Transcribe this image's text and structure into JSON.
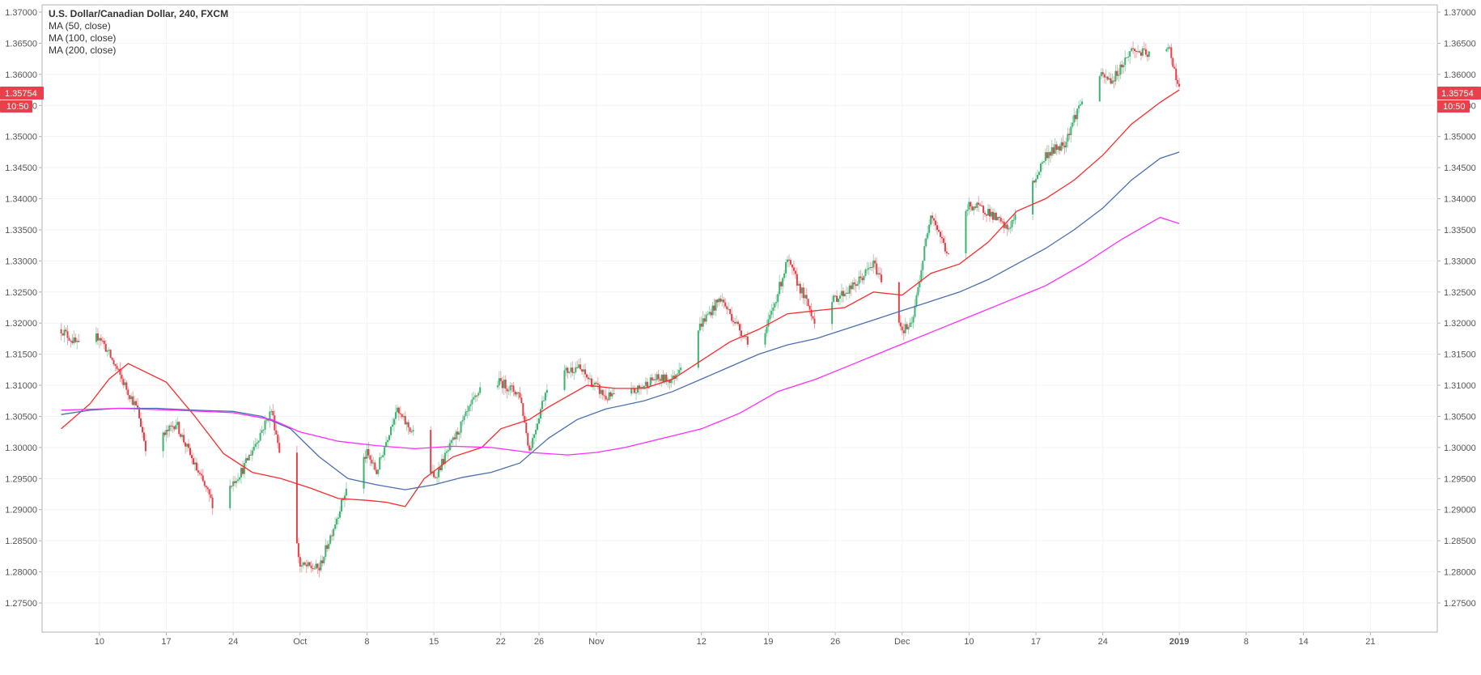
{
  "legend": {
    "title": "U.S. Dollar/Canadian Dollar, 240, FXCM",
    "ma1": "MA (50, close)",
    "ma2": "MA (100, close)",
    "ma3": "MA (200, close)"
  },
  "price_badge": {
    "price": "1.35754",
    "time": "10:50"
  },
  "colors": {
    "up": "#3cb371",
    "down": "#e0404a",
    "ma50": "#ff2a2a",
    "ma100": "#4a6fb0",
    "ma200": "#ff2cff",
    "badge": "#e8404c",
    "axis_text": "#555555",
    "frame": "#b0b0b0"
  },
  "chart_data": {
    "type": "candlestick",
    "ylim": [
      1.275,
      1.37
    ],
    "y_ticks": [
      "1.37000",
      "1.36500",
      "1.36000",
      "1.35500",
      "1.35000",
      "1.34500",
      "1.34000",
      "1.33500",
      "1.33000",
      "1.32500",
      "1.32000",
      "1.31500",
      "1.31000",
      "1.30500",
      "1.30000",
      "1.29500",
      "1.29000",
      "1.28500",
      "1.28000",
      "1.27500"
    ],
    "x_tick_labels": [
      "10",
      "17",
      "24",
      "Oct",
      "8",
      "15",
      "22",
      "26",
      "Nov",
      "12",
      "19",
      "26",
      "Dec",
      "10",
      "17",
      "24",
      "2019",
      "8",
      "14",
      "21"
    ],
    "x_tick_dates": [
      "2018-09-10",
      "2018-09-17",
      "2018-09-24",
      "2018-10-01",
      "2018-10-08",
      "2018-10-15",
      "2018-10-22",
      "2018-10-26",
      "2018-11-01",
      "2018-11-12",
      "2018-11-19",
      "2018-11-26",
      "2018-12-03",
      "2018-12-10",
      "2018-12-17",
      "2018-12-24",
      "2019-01-01",
      "2019-01-08",
      "2019-01-14",
      "2019-01-21"
    ],
    "close_path": [
      [
        "2018-09-06",
        1.319
      ],
      [
        "2018-09-08",
        1.316
      ],
      [
        "2018-09-10",
        1.318
      ],
      [
        "2018-09-12",
        1.312
      ],
      [
        "2018-09-14",
        1.306
      ],
      [
        "2018-09-15",
        1.299
      ],
      [
        "2018-09-18",
        1.304
      ],
      [
        "2018-09-20",
        1.297
      ],
      [
        "2018-09-22",
        1.2905
      ],
      [
        "2018-09-25",
        1.2965
      ],
      [
        "2018-09-28",
        1.306
      ],
      [
        "2018-09-30",
        1.291
      ],
      [
        "2018-10-01",
        1.281
      ],
      [
        "2018-10-03",
        1.2805
      ],
      [
        "2018-10-06",
        1.294
      ],
      [
        "2018-10-08",
        1.299
      ],
      [
        "2018-10-09",
        1.296
      ],
      [
        "2018-10-11",
        1.306
      ],
      [
        "2018-10-13",
        1.302
      ],
      [
        "2018-10-15",
        1.295
      ],
      [
        "2018-10-17",
        1.301
      ],
      [
        "2018-10-20",
        1.31
      ],
      [
        "2018-10-22",
        1.3105
      ],
      [
        "2018-10-24",
        1.3085
      ],
      [
        "2018-10-25",
        1.2995
      ],
      [
        "2018-10-27",
        1.311
      ],
      [
        "2018-10-30",
        1.313
      ],
      [
        "2018-11-02",
        1.308
      ],
      [
        "2018-11-05",
        1.309
      ],
      [
        "2018-11-07",
        1.311
      ],
      [
        "2018-11-09",
        1.311
      ],
      [
        "2018-11-12",
        1.32
      ],
      [
        "2018-11-14",
        1.324
      ],
      [
        "2018-11-16",
        1.319
      ],
      [
        "2018-11-18",
        1.315
      ],
      [
        "2018-11-21",
        1.33
      ],
      [
        "2018-11-24",
        1.32
      ],
      [
        "2018-11-26",
        1.324
      ],
      [
        "2018-11-28",
        1.326
      ],
      [
        "2018-11-30",
        1.3295
      ],
      [
        "2018-12-02",
        1.3235
      ],
      [
        "2018-12-03",
        1.319
      ],
      [
        "2018-12-04",
        1.3195
      ],
      [
        "2018-12-06",
        1.338
      ],
      [
        "2018-12-08",
        1.33
      ],
      [
        "2018-12-10",
        1.339
      ],
      [
        "2018-12-12",
        1.338
      ],
      [
        "2018-12-14",
        1.335
      ],
      [
        "2018-12-16",
        1.34
      ],
      [
        "2018-12-18",
        1.347
      ],
      [
        "2018-12-20",
        1.349
      ],
      [
        "2018-12-21",
        1.353
      ],
      [
        "2018-12-23",
        1.36
      ],
      [
        "2018-12-25",
        1.359
      ],
      [
        "2018-12-27",
        1.364
      ],
      [
        "2018-12-29",
        1.363
      ],
      [
        "2018-12-31",
        1.364
      ],
      [
        "2019-01-01",
        1.3575
      ]
    ],
    "series": [
      {
        "name": "MA (50, close)",
        "points": [
          [
            "2018-09-06",
            1.303
          ],
          [
            "2018-09-09",
            1.307
          ],
          [
            "2018-09-11",
            1.311
          ],
          [
            "2018-09-13",
            1.3135
          ],
          [
            "2018-09-17",
            1.3105
          ],
          [
            "2018-09-20",
            1.305
          ],
          [
            "2018-09-23",
            1.299
          ],
          [
            "2018-09-26",
            1.296
          ],
          [
            "2018-09-29",
            1.295
          ],
          [
            "2018-10-02",
            1.2935
          ],
          [
            "2018-10-05",
            1.2918
          ],
          [
            "2018-10-08",
            1.2915
          ],
          [
            "2018-10-10",
            1.2912
          ],
          [
            "2018-10-12",
            1.2905
          ],
          [
            "2018-10-14",
            1.295
          ],
          [
            "2018-10-17",
            1.2985
          ],
          [
            "2018-10-20",
            1.3
          ],
          [
            "2018-10-22",
            1.303
          ],
          [
            "2018-10-25",
            1.3045
          ],
          [
            "2018-10-27",
            1.3065
          ],
          [
            "2018-10-31",
            1.31
          ],
          [
            "2018-11-03",
            1.3095
          ],
          [
            "2018-11-06",
            1.3095
          ],
          [
            "2018-11-09",
            1.311
          ],
          [
            "2018-11-12",
            1.314
          ],
          [
            "2018-11-15",
            1.317
          ],
          [
            "2018-11-18",
            1.319
          ],
          [
            "2018-11-21",
            1.3215
          ],
          [
            "2018-11-24",
            1.322
          ],
          [
            "2018-11-27",
            1.3225
          ],
          [
            "2018-11-30",
            1.325
          ],
          [
            "2018-12-03",
            1.3245
          ],
          [
            "2018-12-06",
            1.328
          ],
          [
            "2018-12-09",
            1.3295
          ],
          [
            "2018-12-12",
            1.333
          ],
          [
            "2018-12-15",
            1.338
          ],
          [
            "2018-12-18",
            1.34
          ],
          [
            "2018-12-21",
            1.343
          ],
          [
            "2018-12-24",
            1.347
          ],
          [
            "2018-12-27",
            1.352
          ],
          [
            "2018-12-30",
            1.3555
          ],
          [
            "2019-01-01",
            1.3575
          ]
        ]
      },
      {
        "name": "MA (100, close)",
        "points": [
          [
            "2018-09-06",
            1.3053
          ],
          [
            "2018-09-09",
            1.306
          ],
          [
            "2018-09-12",
            1.3063
          ],
          [
            "2018-09-16",
            1.3063
          ],
          [
            "2018-09-20",
            1.306
          ],
          [
            "2018-09-24",
            1.3058
          ],
          [
            "2018-09-27",
            1.305
          ],
          [
            "2018-09-30",
            1.303
          ],
          [
            "2018-10-03",
            1.2985
          ],
          [
            "2018-10-06",
            1.295
          ],
          [
            "2018-10-09",
            1.294
          ],
          [
            "2018-10-12",
            1.2932
          ],
          [
            "2018-10-15",
            1.294
          ],
          [
            "2018-10-18",
            1.2952
          ],
          [
            "2018-10-21",
            1.296
          ],
          [
            "2018-10-24",
            1.2975
          ],
          [
            "2018-10-27",
            1.3015
          ],
          [
            "2018-10-30",
            1.3045
          ],
          [
            "2018-11-02",
            1.3062
          ],
          [
            "2018-11-06",
            1.3075
          ],
          [
            "2018-11-09",
            1.309
          ],
          [
            "2018-11-12",
            1.311
          ],
          [
            "2018-11-15",
            1.313
          ],
          [
            "2018-11-18",
            1.315
          ],
          [
            "2018-11-21",
            1.3165
          ],
          [
            "2018-11-24",
            1.3175
          ],
          [
            "2018-11-27",
            1.319
          ],
          [
            "2018-11-30",
            1.3205
          ],
          [
            "2018-12-03",
            1.322
          ],
          [
            "2018-12-06",
            1.3235
          ],
          [
            "2018-12-09",
            1.325
          ],
          [
            "2018-12-12",
            1.327
          ],
          [
            "2018-12-15",
            1.3295
          ],
          [
            "2018-12-18",
            1.332
          ],
          [
            "2018-12-21",
            1.335
          ],
          [
            "2018-12-24",
            1.3385
          ],
          [
            "2018-12-27",
            1.343
          ],
          [
            "2018-12-30",
            1.3465
          ],
          [
            "2019-01-01",
            1.3475
          ]
        ]
      },
      {
        "name": "MA (200, close)",
        "points": [
          [
            "2018-09-06",
            1.306
          ],
          [
            "2018-09-12",
            1.3063
          ],
          [
            "2018-09-18",
            1.306
          ],
          [
            "2018-09-24",
            1.3056
          ],
          [
            "2018-09-28",
            1.3045
          ],
          [
            "2018-10-01",
            1.3025
          ],
          [
            "2018-10-05",
            1.301
          ],
          [
            "2018-10-09",
            1.3003
          ],
          [
            "2018-10-13",
            1.2998
          ],
          [
            "2018-10-17",
            1.3002
          ],
          [
            "2018-10-21",
            1.3
          ],
          [
            "2018-10-25",
            1.2992
          ],
          [
            "2018-10-29",
            1.2988
          ],
          [
            "2018-11-01",
            1.2992
          ],
          [
            "2018-11-04",
            1.3
          ],
          [
            "2018-11-08",
            1.3015
          ],
          [
            "2018-11-12",
            1.303
          ],
          [
            "2018-11-16",
            1.3055
          ],
          [
            "2018-11-20",
            1.309
          ],
          [
            "2018-11-24",
            1.311
          ],
          [
            "2018-11-28",
            1.3135
          ],
          [
            "2018-12-02",
            1.316
          ],
          [
            "2018-12-06",
            1.3185
          ],
          [
            "2018-12-10",
            1.321
          ],
          [
            "2018-12-14",
            1.3235
          ],
          [
            "2018-12-18",
            1.326
          ],
          [
            "2018-12-22",
            1.3295
          ],
          [
            "2018-12-26",
            1.3335
          ],
          [
            "2018-12-30",
            1.337
          ],
          [
            "2019-01-01",
            1.336
          ]
        ]
      }
    ]
  }
}
